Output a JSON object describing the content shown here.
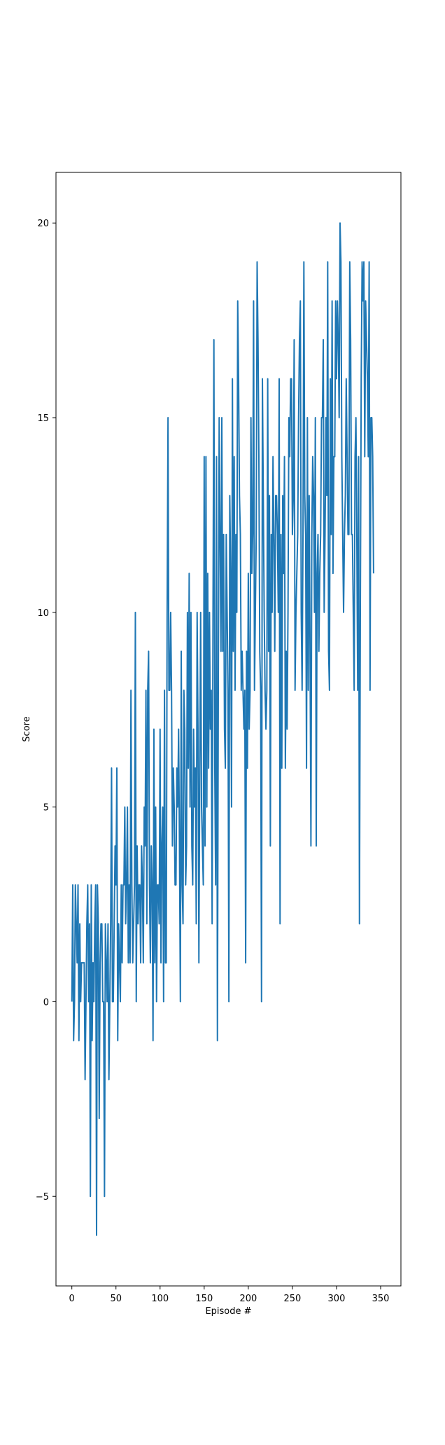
{
  "chart_data": {
    "type": "line",
    "xlabel": "Episode #",
    "ylabel": "Score",
    "xlim": [
      -18,
      373
    ],
    "ylim": [
      -7.3,
      21.3
    ],
    "x_ticks": [
      0,
      50,
      100,
      150,
      200,
      250,
      300,
      350
    ],
    "y_ticks": [
      -5,
      0,
      5,
      10,
      15,
      20
    ],
    "x_tick_labels": [
      "0",
      "50",
      "100",
      "150",
      "200",
      "250",
      "300",
      "350"
    ],
    "y_tick_labels": [
      "−5",
      "0",
      "5",
      "10",
      "15",
      "20"
    ],
    "grid": false,
    "color": "#1f77b4",
    "series": [
      {
        "x_start": 0,
        "values": [
          0,
          3,
          -1,
          0,
          3,
          2,
          1,
          3,
          -1,
          2,
          0,
          1,
          1,
          1,
          1,
          -2,
          0,
          2,
          3,
          0,
          2,
          -5,
          3,
          -1,
          1,
          0,
          2,
          3,
          -6,
          3,
          2,
          -3,
          1,
          2,
          2,
          0,
          0,
          -5,
          2,
          1,
          0,
          2,
          -2,
          0,
          2,
          6,
          0,
          0,
          2,
          4,
          3,
          6,
          -1,
          2,
          1,
          0,
          3,
          1,
          3,
          3,
          5,
          2,
          3,
          5,
          1,
          3,
          1,
          8,
          3,
          1,
          2,
          3,
          10,
          0,
          4,
          2,
          3,
          3,
          1,
          4,
          3,
          1,
          5,
          4,
          8,
          2,
          8,
          9,
          3,
          1,
          4,
          3,
          -1,
          7,
          1,
          5,
          0,
          3,
          3,
          2,
          7,
          1,
          4,
          5,
          0,
          8,
          1,
          1,
          10,
          15,
          8,
          8,
          10,
          8,
          4,
          6,
          5,
          3,
          3,
          6,
          5,
          7,
          4,
          0,
          9,
          3,
          2,
          8,
          7,
          3,
          4,
          10,
          6,
          11,
          5,
          10,
          4,
          3,
          7,
          5,
          6,
          2,
          10,
          7,
          1,
          6,
          10,
          5,
          4,
          3,
          14,
          4,
          14,
          5,
          11,
          6,
          10,
          7,
          8,
          2,
          10,
          17,
          6,
          3,
          14,
          -1,
          8,
          15,
          12,
          9,
          15,
          9,
          12,
          7,
          6,
          12,
          10,
          8,
          0,
          13,
          11,
          5,
          16,
          9,
          14,
          8,
          12,
          10,
          18,
          16,
          13,
          12,
          8,
          9,
          8,
          7,
          8,
          1,
          9,
          6,
          11,
          7,
          8,
          15,
          11,
          12,
          18,
          8,
          10,
          12,
          19,
          17,
          14,
          9,
          8,
          0,
          16,
          13,
          10,
          8,
          7,
          8,
          16,
          9,
          13,
          4,
          12,
          10,
          14,
          12,
          9,
          13,
          13,
          12,
          10,
          16,
          2,
          12,
          6,
          13,
          11,
          14,
          6,
          9,
          7,
          10,
          15,
          14,
          16,
          16,
          12,
          13,
          17,
          8,
          10,
          11,
          12,
          15,
          17,
          18,
          10,
          8,
          12,
          19,
          13,
          12,
          6,
          15,
          8,
          13,
          9,
          4,
          12,
          14,
          13,
          10,
          15,
          4,
          11,
          12,
          9,
          11,
          12,
          15,
          15,
          17,
          10,
          12,
          15,
          13,
          19,
          9,
          8,
          16,
          12,
          18,
          11,
          14,
          14,
          18,
          16,
          18,
          17,
          15,
          20,
          19,
          14,
          12,
          10,
          12,
          13,
          16,
          14,
          12,
          12,
          19,
          17,
          12,
          12,
          10,
          8,
          14,
          15,
          12,
          8,
          14,
          2,
          10,
          16,
          19,
          18,
          19,
          14,
          18,
          17,
          16,
          14,
          19,
          8,
          15,
          15,
          14,
          11
        ]
      }
    ]
  }
}
